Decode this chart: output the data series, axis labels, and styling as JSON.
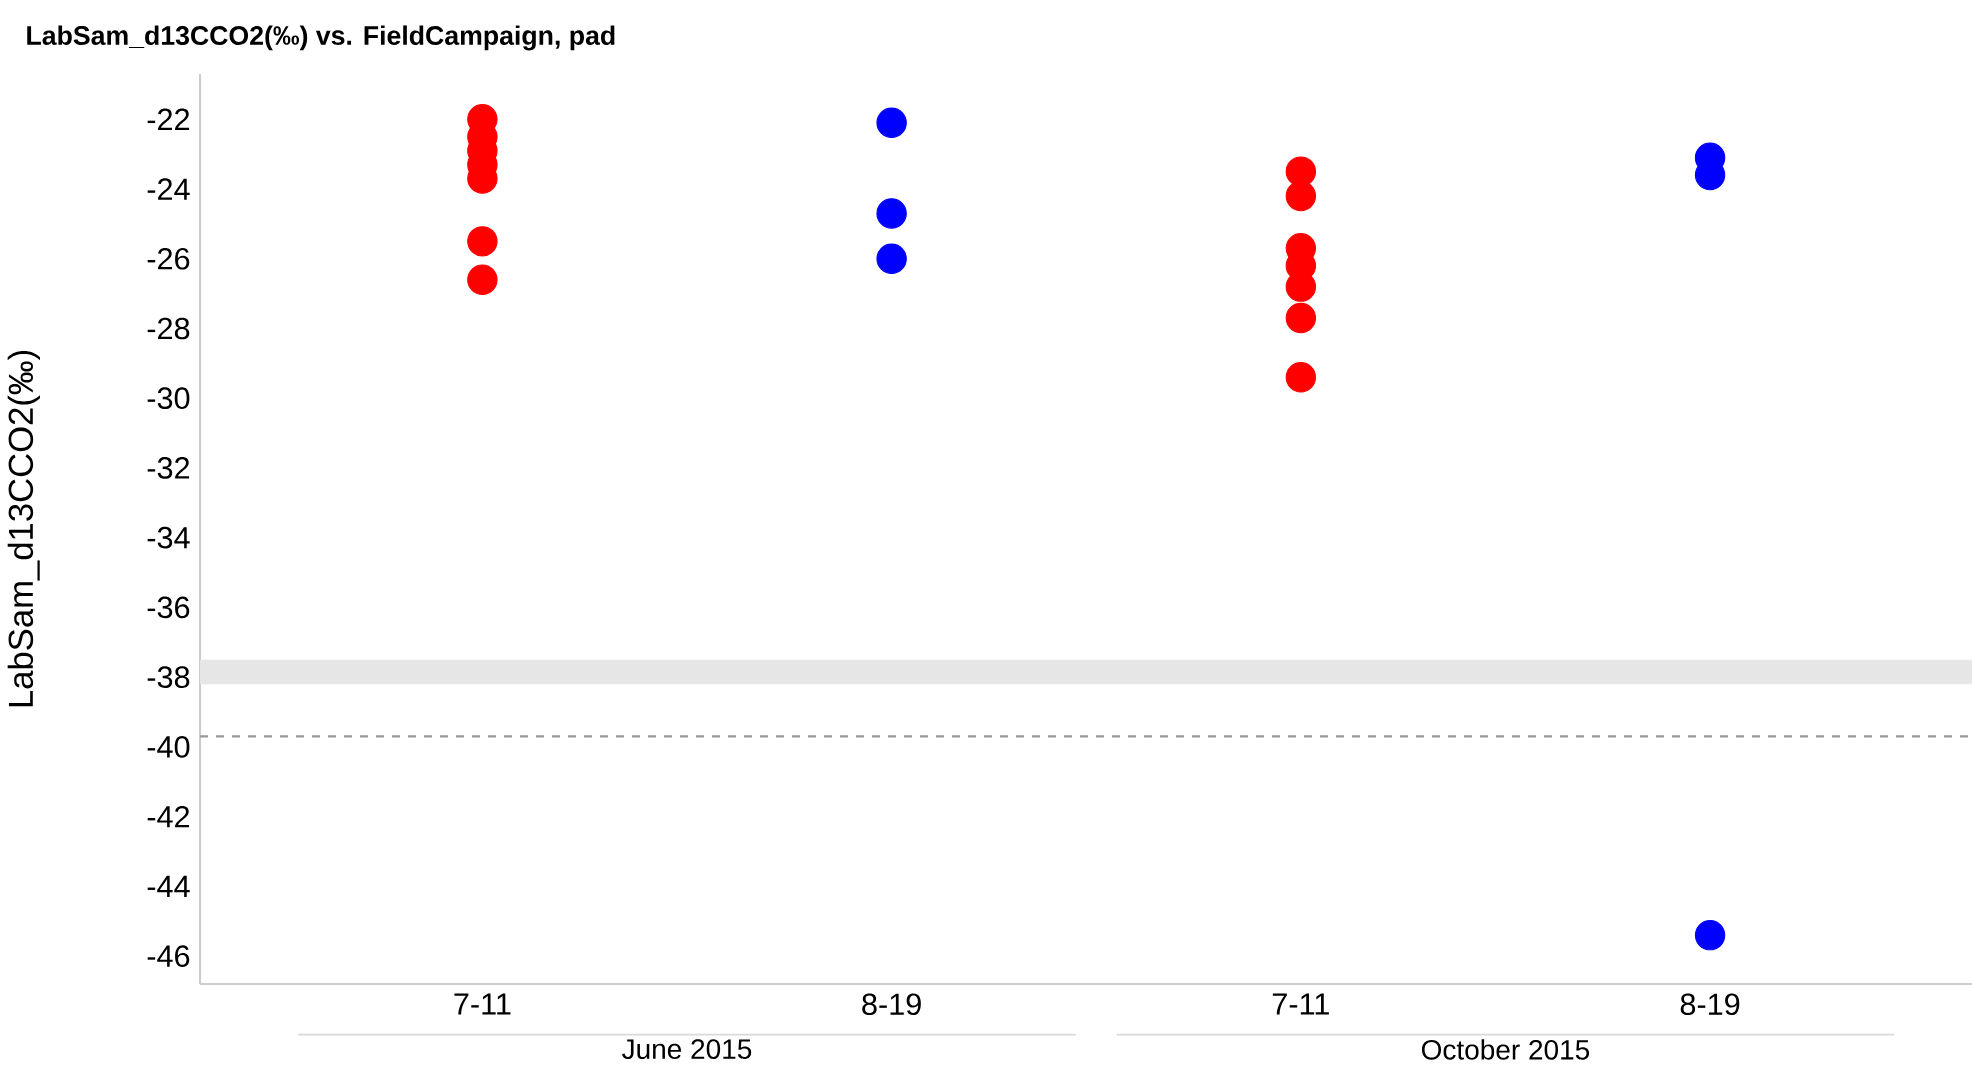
{
  "chart_data": {
    "type": "scatter",
    "title": "LabSam_d13CCO2(‰) vs. FieldCampaign, pad",
    "ylabel": "LabSam_d13CCO2(‰)",
    "categories": [
      "7-11",
      "8-19",
      "7-11",
      "8-19"
    ],
    "series": [
      {
        "color": "#ff0000",
        "values": [
          -22.0,
          null,
          -23.5,
          null
        ]
      },
      {
        "color": "#ff0000",
        "values": [
          -22.5,
          null,
          -24.2,
          null
        ]
      },
      {
        "color": "#ff0000",
        "values": [
          -22.9,
          null,
          -25.7,
          null
        ]
      },
      {
        "color": "#ff0000",
        "values": [
          -23.3,
          null,
          -26.2,
          null
        ]
      },
      {
        "color": "#ff0000",
        "values": [
          -23.7,
          null,
          -26.8,
          null
        ]
      },
      {
        "color": "#ff0000",
        "values": [
          -25.5,
          null,
          -27.7,
          null
        ]
      },
      {
        "color": "#ff0000",
        "values": [
          -26.6,
          null,
          -29.4,
          null
        ]
      },
      {
        "color": "#0000ff",
        "values": [
          null,
          -22.1,
          null,
          -23.1
        ]
      },
      {
        "color": "#0000ff",
        "values": [
          null,
          -24.7,
          null,
          -23.6
        ]
      },
      {
        "color": "#0000ff",
        "values": [
          null,
          -26.0,
          null,
          -45.4
        ]
      }
    ],
    "marker": "circle",
    "ylim": [
      -46.8,
      -20.7
    ],
    "yticks": [
      -22,
      -24,
      -26,
      -28,
      -30,
      -32,
      -34,
      -36,
      -38,
      -40,
      -42,
      -44,
      -46
    ],
    "bands": [
      {
        "axis": "y",
        "from": -38.2,
        "to": -37.5,
        "color": "#e6e6e6"
      }
    ],
    "ref_lines": [
      {
        "axis": "y",
        "value": -39.7,
        "color": "#999999",
        "line_style": "dashed"
      }
    ],
    "annotations": [
      "June 2015",
      "October 2015"
    ]
  }
}
